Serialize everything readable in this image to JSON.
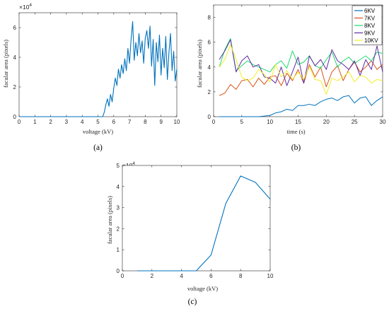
{
  "chart_data": [
    {
      "type": "line",
      "panel_label": "(a)",
      "xlabel": "voltage (kV)",
      "ylabel": "facular area (pixels)",
      "multiplier": "×10",
      "multiplier_exp": "4",
      "xlim": [
        0,
        10
      ],
      "ylim": [
        0,
        7
      ],
      "xticks": [
        0,
        1,
        2,
        3,
        4,
        5,
        6,
        7,
        8,
        9,
        10
      ],
      "yticks": [
        0,
        2,
        4,
        6
      ],
      "grid": false,
      "color": "#0072BD",
      "x": [
        0,
        0.5,
        1,
        1.5,
        2,
        2.5,
        3,
        3.5,
        4,
        4.5,
        5,
        5.3,
        5.4,
        5.5,
        5.6,
        5.7,
        5.8,
        5.9,
        6.0,
        6.1,
        6.2,
        6.3,
        6.4,
        6.5,
        6.6,
        6.7,
        6.8,
        6.9,
        7.0,
        7.1,
        7.2,
        7.3,
        7.4,
        7.5,
        7.6,
        7.7,
        7.8,
        7.9,
        8.0,
        8.1,
        8.2,
        8.3,
        8.4,
        8.5,
        8.6,
        8.7,
        8.8,
        8.9,
        9.0,
        9.1,
        9.2,
        9.3,
        9.4,
        9.5,
        9.6,
        9.7,
        9.8,
        9.9,
        10.0
      ],
      "y": [
        0,
        0,
        0,
        0,
        0,
        0,
        0,
        0,
        0,
        0,
        0,
        0,
        0.3,
        0.8,
        1.2,
        0.7,
        1.5,
        1.0,
        1.9,
        2.6,
        2.1,
        3.2,
        2.6,
        3.5,
        2.9,
        3.9,
        3.1,
        4.6,
        3.6,
        5.2,
        6.4,
        3.8,
        5.0,
        4.1,
        5.6,
        4.3,
        5.1,
        3.6,
        5.3,
        5.8,
        4.6,
        6.1,
        3.4,
        5.2,
        2.1,
        5.0,
        3.7,
        5.5,
        2.8,
        4.6,
        3.3,
        5.4,
        2.5,
        4.3,
        5.6,
        3.1,
        4.4,
        2.4,
        3.2
      ]
    },
    {
      "type": "line",
      "panel_label": "(b)",
      "xlabel": "time (s)",
      "ylabel": "facular area (pixels)",
      "xlim": [
        0,
        30
      ],
      "ylim": [
        0,
        9
      ],
      "xticks": [
        0,
        5,
        10,
        15,
        20,
        25,
        30
      ],
      "yticks": [
        0,
        2,
        4,
        6,
        8
      ],
      "grid": false,
      "legend_position": "top-right",
      "x": [
        1,
        2,
        3,
        4,
        5,
        6,
        7,
        8,
        9,
        10,
        11,
        12,
        13,
        14,
        15,
        16,
        17,
        18,
        19,
        20,
        21,
        22,
        23,
        24,
        25,
        26,
        27,
        28,
        29,
        30
      ],
      "series": [
        {
          "name": "6KV",
          "color": "#0072BD",
          "values": [
            0,
            0,
            0,
            0,
            0,
            0,
            0,
            0,
            0.05,
            0.1,
            0.3,
            0.4,
            0.6,
            0.5,
            0.9,
            0.9,
            1.0,
            0.9,
            1.2,
            1.4,
            1.5,
            1.3,
            1.6,
            1.7,
            1.1,
            1.5,
            1.6,
            0.9,
            1.3,
            1.6
          ]
        },
        {
          "name": "7KV",
          "color": "#D95319",
          "values": [
            1.7,
            1.9,
            2.6,
            2.2,
            2.9,
            3.0,
            2.4,
            3.1,
            2.6,
            3.2,
            3.3,
            2.5,
            3.5,
            2.9,
            3.8,
            2.7,
            4.2,
            3.2,
            4.0,
            2.4,
            3.6,
            4.1,
            2.9,
            3.8,
            4.4,
            3.6,
            4.0,
            4.5,
            3.8,
            4.2
          ]
        },
        {
          "name": "8KV",
          "color": "#21D96C",
          "values": [
            4.0,
            5.4,
            6.3,
            3.7,
            4.1,
            4.5,
            4.2,
            4.0,
            3.8,
            3.6,
            4.2,
            4.5,
            3.9,
            5.3,
            4.2,
            4.4,
            4.9,
            4.1,
            3.9,
            4.6,
            5.2,
            4.0,
            4.5,
            4.8,
            4.3,
            4.6,
            4.9,
            4.5,
            5.2,
            5.1
          ]
        },
        {
          "name": "9KV",
          "color": "#5E2CA5",
          "values": [
            4.6,
            5.3,
            6.2,
            3.6,
            4.5,
            4.9,
            4.0,
            4.2,
            3.2,
            3.1,
            2.7,
            4.0,
            2.5,
            3.6,
            4.8,
            2.7,
            4.9,
            4.1,
            4.6,
            3.8,
            5.4,
            4.5,
            4.2,
            3.8,
            4.5,
            3.3,
            4.6,
            3.8,
            5.7,
            3.6
          ]
        },
        {
          "name": "10KV",
          "color": "#F0EE2A",
          "values": [
            4.0,
            4.6,
            5.8,
            4.6,
            3.2,
            2.9,
            3.1,
            3.8,
            3.4,
            2.8,
            4.2,
            3.2,
            3.7,
            3.0,
            3.6,
            3.0,
            4.0,
            3.0,
            2.9,
            1.8,
            3.1,
            2.9,
            3.2,
            3.6,
            2.8,
            3.3,
            3.2,
            2.7,
            3.0,
            2.9
          ]
        }
      ]
    },
    {
      "type": "line",
      "panel_label": "(c)",
      "xlabel": "voltage (kV)",
      "ylabel": "facular area (pixels)",
      "multiplier": "×10",
      "multiplier_exp": "4",
      "xlim": [
        0,
        10
      ],
      "ylim": [
        0,
        5
      ],
      "xticks": [
        0,
        2,
        4,
        6,
        8,
        10
      ],
      "yticks": [
        0,
        1,
        2,
        3,
        4,
        5
      ],
      "grid": false,
      "color": "#0072BD",
      "x": [
        1,
        2,
        3,
        4,
        5,
        6,
        7,
        8,
        9,
        10
      ],
      "y": [
        0,
        0,
        0,
        0,
        0,
        0.75,
        3.2,
        4.5,
        4.2,
        3.4
      ]
    }
  ]
}
